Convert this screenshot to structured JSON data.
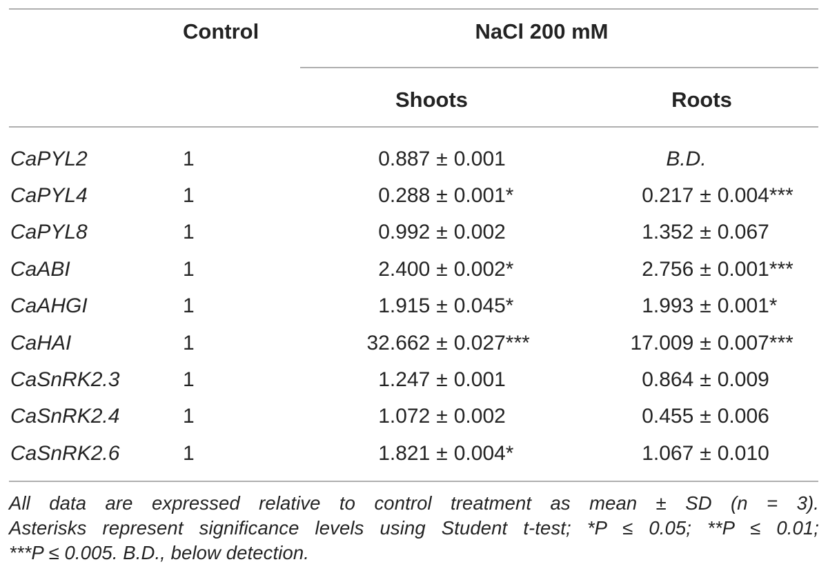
{
  "table": {
    "header": {
      "control": "Control",
      "nacl_group": "NaCl 200 mM",
      "shoots": "Shoots",
      "roots": "Roots"
    },
    "plus_minus": "±",
    "rows": [
      {
        "gene": "CaPYL2",
        "control": "1",
        "shoots": {
          "mean": "0.887",
          "sd": "0.001"
        },
        "roots": {
          "text": "B.D."
        }
      },
      {
        "gene": "CaPYL4",
        "control": "1",
        "shoots": {
          "mean": "0.288",
          "sd": "0.001*"
        },
        "roots": {
          "mean": "0.217",
          "sd": "0.004***"
        }
      },
      {
        "gene": "CaPYL8",
        "control": "1",
        "shoots": {
          "mean": "0.992",
          "sd": "0.002"
        },
        "roots": {
          "mean": "1.352",
          "sd": "0.067"
        }
      },
      {
        "gene": "CaABI",
        "control": "1",
        "shoots": {
          "mean": "2.400",
          "sd": "0.002*"
        },
        "roots": {
          "mean": "2.756",
          "sd": "0.001***"
        }
      },
      {
        "gene": "CaAHGI",
        "control": "1",
        "shoots": {
          "mean": "1.915",
          "sd": "0.045*"
        },
        "roots": {
          "mean": "1.993",
          "sd": "0.001*"
        }
      },
      {
        "gene": "CaHAI",
        "control": "1",
        "shoots": {
          "mean": "32.662",
          "sd": "0.027***"
        },
        "roots": {
          "mean": "17.009",
          "sd": "0.007***"
        }
      },
      {
        "gene": "CaSnRK2.3",
        "control": "1",
        "shoots": {
          "mean": "1.247",
          "sd": "0.001"
        },
        "roots": {
          "mean": "0.864",
          "sd": "0.009"
        }
      },
      {
        "gene": "CaSnRK2.4",
        "control": "1",
        "shoots": {
          "mean": "1.072",
          "sd": "0.002"
        },
        "roots": {
          "mean": "0.455",
          "sd": "0.006"
        }
      },
      {
        "gene": "CaSnRK2.6",
        "control": "1",
        "shoots": {
          "mean": "1.821",
          "sd": "0.004*"
        },
        "roots": {
          "mean": "1.067",
          "sd": "0.010"
        }
      }
    ]
  },
  "footnote": {
    "lines": [
      "All data are expressed relative to control treatment as mean ± SD (n = 3).",
      "Asterisks represent significance levels using Student t-test; *P ≤ 0.05; **P ≤ 0.01;",
      "***P ≤ 0.005. B.D., below detection."
    ]
  },
  "colors": {
    "text": "#232323",
    "divider": "#aeaeae"
  }
}
